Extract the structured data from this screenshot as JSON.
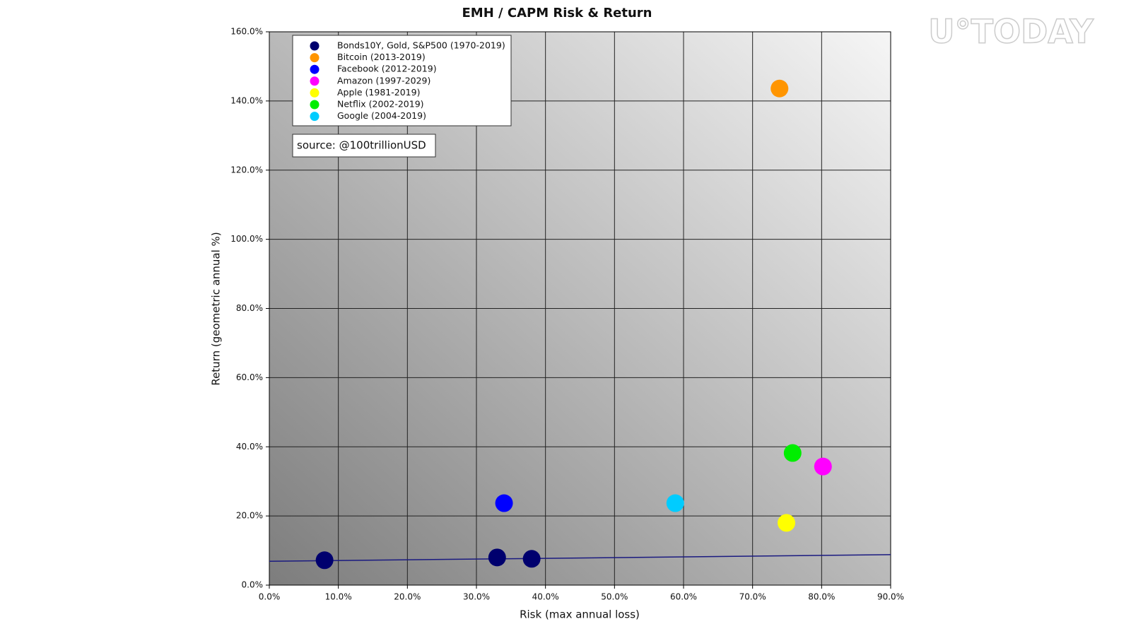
{
  "chart_data": {
    "type": "scatter",
    "title": "EMH / CAPM Risk & Return",
    "xlabel": "Risk (max annual loss)",
    "ylabel": "Return (geometric annual %)",
    "annotation": "source: @100trillionUSD",
    "watermark": "U°TODAY",
    "xlim": [
      0,
      90
    ],
    "ylim": [
      0,
      160
    ],
    "xticks": [
      {
        "value": 0,
        "label": "0.0%"
      },
      {
        "value": 10,
        "label": "10.0%"
      },
      {
        "value": 20,
        "label": "20.0%"
      },
      {
        "value": 30,
        "label": "30.0%"
      },
      {
        "value": 40,
        "label": "40.0%"
      },
      {
        "value": 50,
        "label": "50.0%"
      },
      {
        "value": 60,
        "label": "60.0%"
      },
      {
        "value": 70,
        "label": "70.0%"
      },
      {
        "value": 80,
        "label": "80.0%"
      },
      {
        "value": 90,
        "label": "90.0%"
      }
    ],
    "yticks": [
      {
        "value": 0,
        "label": "0.0%"
      },
      {
        "value": 20,
        "label": "20.0%"
      },
      {
        "value": 40,
        "label": "40.0%"
      },
      {
        "value": 60,
        "label": "60.0%"
      },
      {
        "value": 80,
        "label": "80.0%"
      },
      {
        "value": 100,
        "label": "100.0%"
      },
      {
        "value": 120,
        "label": "120.0%"
      },
      {
        "value": 140,
        "label": "140.0%"
      },
      {
        "value": 160,
        "label": "160.0%"
      }
    ],
    "grid": true,
    "legend": "upper left",
    "series": [
      {
        "name": "Bonds10Y, Gold, S&P500 (1970-2019)",
        "color": "#00006e",
        "x": [
          8.0,
          33.0,
          38.0
        ],
        "values": [
          7.2,
          8.0,
          7.6
        ]
      },
      {
        "name": "Bitcoin (2013-2019)",
        "color": "#ff9500",
        "x": [
          73.9
        ],
        "values": [
          143.6
        ]
      },
      {
        "name": "Facebook (2012-2019)",
        "color": "#0000ff",
        "x": [
          34.0
        ],
        "values": [
          23.7
        ]
      },
      {
        "name": "Amazon (1997-2029)",
        "color": "#ff00ff",
        "x": [
          80.2
        ],
        "values": [
          34.3
        ]
      },
      {
        "name": "Apple (1981-2019)",
        "color": "#ffff00",
        "x": [
          74.9
        ],
        "values": [
          18.0
        ]
      },
      {
        "name": "Netflix (2002-2019)",
        "color": "#00ee00",
        "x": [
          75.8
        ],
        "values": [
          38.2
        ]
      },
      {
        "name": "Google (2004-2019)",
        "color": "#00ccff",
        "x": [
          58.8
        ],
        "values": [
          23.7
        ]
      }
    ],
    "trend_line": {
      "color": "#1a1a80",
      "x": [
        0,
        90
      ],
      "values": [
        6.9,
        8.8
      ]
    }
  }
}
